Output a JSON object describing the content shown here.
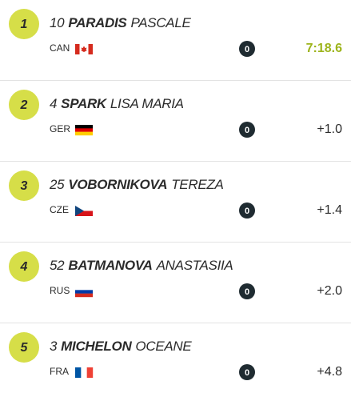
{
  "results": [
    {
      "rank": 1,
      "bib": 10,
      "last_name": "PARADIS",
      "first_name": "PASCALE",
      "country": "CAN",
      "penalties": 0,
      "result": "7:18.6"
    },
    {
      "rank": 2,
      "bib": 4,
      "last_name": "SPARK",
      "first_name": "LISA MARIA",
      "country": "GER",
      "penalties": 0,
      "result": "+1.0"
    },
    {
      "rank": 3,
      "bib": 25,
      "last_name": "VOBORNIKOVA",
      "first_name": "TEREZA",
      "country": "CZE",
      "penalties": 0,
      "result": "+1.4"
    },
    {
      "rank": 4,
      "bib": 52,
      "last_name": "BATMANOVA",
      "first_name": "ANASTASIIA",
      "country": "RUS",
      "penalties": 0,
      "result": "+2.0"
    },
    {
      "rank": 5,
      "bib": 3,
      "last_name": "MICHELON",
      "first_name": "OCEANE",
      "country": "FRA",
      "penalties": 0,
      "result": "+4.8"
    }
  ]
}
